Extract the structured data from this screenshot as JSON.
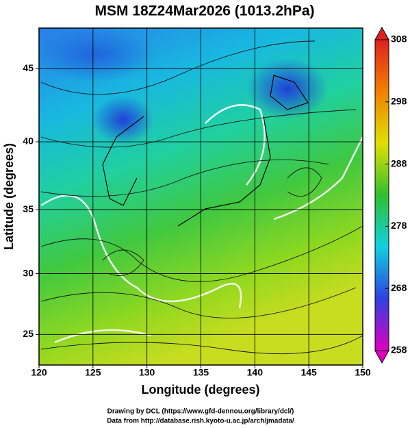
{
  "chart_data": {
    "type": "map",
    "title": "MSM 18Z24Mar2026 (1013.2hPa)",
    "xlabel": "Longitude (degrees)",
    "ylabel": "Latitude  (degrees)",
    "projection": "mercator",
    "xlim": [
      120,
      150
    ],
    "ylim": [
      22.4,
      47.6
    ],
    "xticks": [
      120,
      125,
      130,
      135,
      140,
      145,
      150
    ],
    "yticks": [
      25,
      30,
      35,
      40,
      45
    ],
    "grid": true,
    "colorbar": {
      "lim": [
        258,
        308
      ],
      "ticks": [
        258,
        268,
        278,
        288,
        298,
        308
      ],
      "colors": [
        "#e000c0",
        "#3040e0",
        "#10d0e0",
        "#30c030",
        "#e0e000",
        "#f08000",
        "#e02020"
      ]
    },
    "credits": [
      "Drawing by DCL (https://www.gfd-dennou.org/library/dcl/)",
      "Data from http://database.rish.kyoto-u.ac.jp/arch/jmadata/"
    ]
  }
}
